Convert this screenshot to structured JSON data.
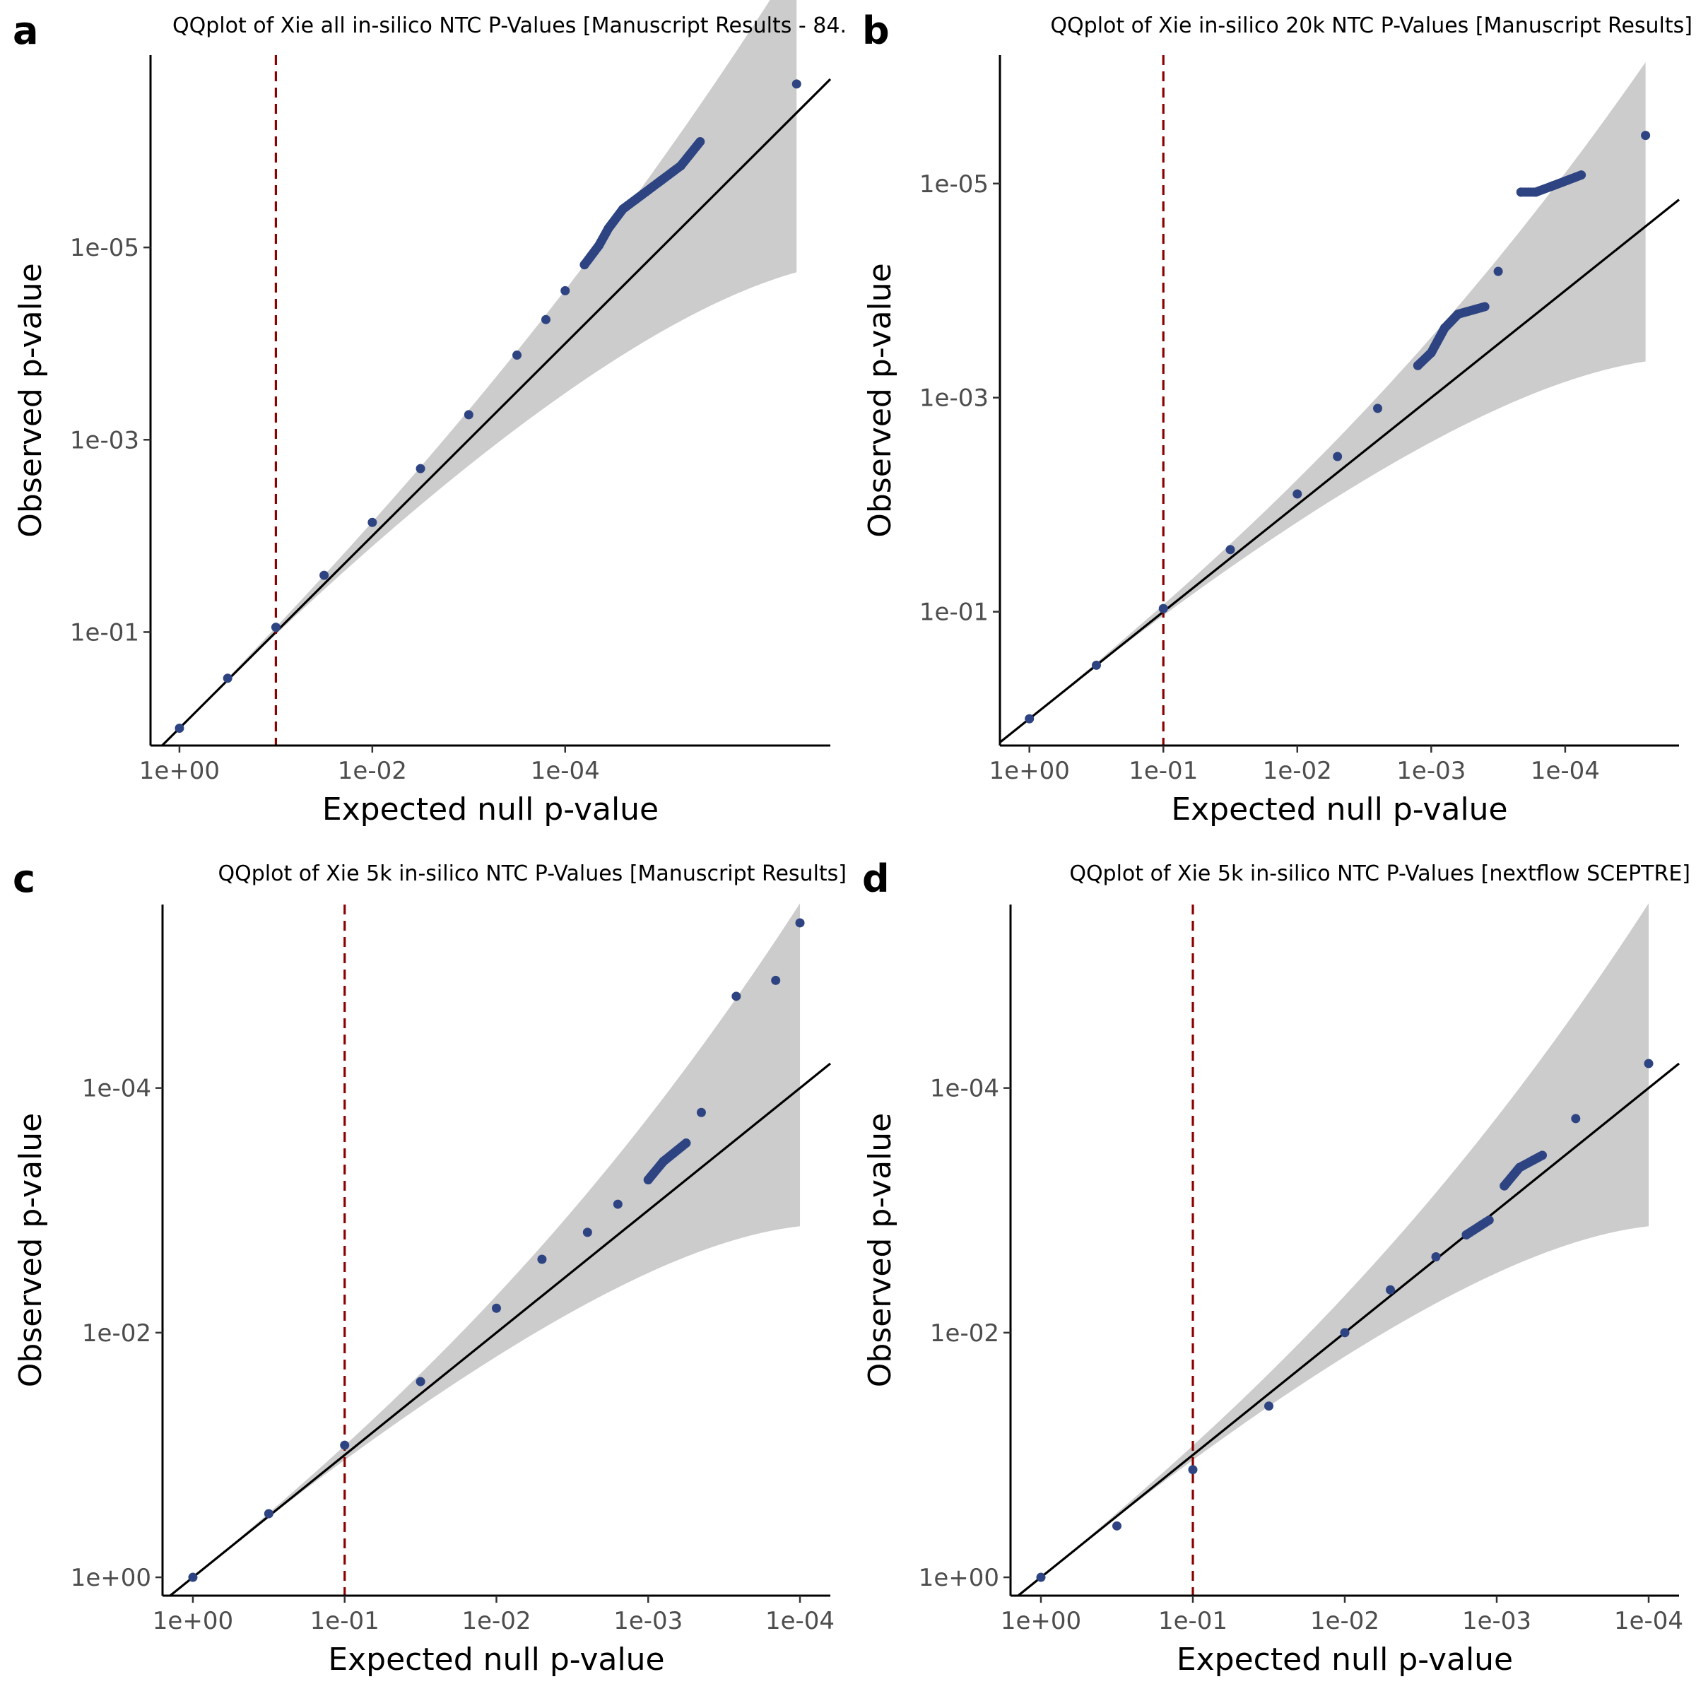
{
  "chart_data": [
    {
      "panel": "a",
      "type": "scatter",
      "title": "QQplot of Xie all in-silico NTC P-Values [Manuscript Results - 84.",
      "xlabel": "Expected null p-value",
      "ylabel": "Observed p-value",
      "x_scale": "reverse-log10",
      "y_scale": "reverse-log10",
      "xlim_neglog10": [
        -0.3,
        6.75
      ],
      "ylim_neglog10": [
        -0.18,
        7.0
      ],
      "x_ticks": [
        "1e+00",
        "1e-02",
        "1e-04"
      ],
      "y_ticks": [
        "1e-01",
        "1e-03",
        "1e-05"
      ],
      "threshold_line_p": 0.1,
      "diagonal": "y = x",
      "points_neglog10": [
        [
          0.0,
          0.0
        ],
        [
          0.5,
          0.52
        ],
        [
          1.0,
          1.05
        ],
        [
          1.5,
          1.59
        ],
        [
          2.0,
          2.14
        ],
        [
          2.5,
          2.7
        ],
        [
          3.0,
          3.26
        ],
        [
          3.5,
          3.88
        ],
        [
          3.8,
          4.25
        ],
        [
          4.0,
          4.55
        ],
        [
          4.2,
          4.82
        ],
        [
          4.35,
          5.02
        ],
        [
          4.45,
          5.2
        ],
        [
          4.6,
          5.4
        ],
        [
          4.8,
          5.55
        ],
        [
          5.0,
          5.7
        ],
        [
          5.2,
          5.85
        ],
        [
          5.4,
          6.1
        ],
        [
          6.4,
          6.7
        ]
      ]
    },
    {
      "panel": "b",
      "type": "scatter",
      "title": "QQplot of Xie in-silico 20k NTC P-Values [Manuscript Results]",
      "xlabel": "Expected null p-value",
      "ylabel": "Observed p-value",
      "x_scale": "reverse-log10",
      "y_scale": "reverse-log10",
      "xlim_neglog10": [
        -0.22,
        4.85
      ],
      "ylim_neglog10": [
        -0.25,
        6.2
      ],
      "x_ticks": [
        "1e+00",
        "1e-01",
        "1e-02",
        "1e-03",
        "1e-04"
      ],
      "y_ticks": [
        "1e-01",
        "1e-03",
        "1e-05"
      ],
      "threshold_line_p": 0.1,
      "diagonal": "y = x",
      "points_neglog10": [
        [
          0.0,
          0.0
        ],
        [
          0.5,
          0.5
        ],
        [
          1.0,
          1.03
        ],
        [
          1.5,
          1.58
        ],
        [
          2.0,
          2.1
        ],
        [
          2.3,
          2.45
        ],
        [
          2.6,
          2.9
        ],
        [
          2.9,
          3.3
        ],
        [
          3.0,
          3.42
        ],
        [
          3.1,
          3.65
        ],
        [
          3.2,
          3.78
        ],
        [
          3.4,
          3.85
        ],
        [
          3.5,
          4.18
        ],
        [
          3.67,
          4.92
        ],
        [
          3.78,
          4.92
        ],
        [
          3.91,
          4.98
        ],
        [
          4.12,
          5.08
        ],
        [
          4.6,
          5.45
        ]
      ]
    },
    {
      "panel": "c",
      "type": "scatter",
      "title": "QQplot of Xie 5k in-silico NTC P-Values [Manuscript Results]",
      "xlabel": "Expected null p-value",
      "ylabel": "Observed p-value",
      "x_scale": "reverse-log10",
      "y_scale": "reverse-log10",
      "xlim_neglog10": [
        -0.2,
        4.2
      ],
      "ylim_neglog10": [
        -0.15,
        5.5
      ],
      "x_ticks": [
        "1e+00",
        "1e-01",
        "1e-02",
        "1e-03",
        "1e-04"
      ],
      "y_ticks": [
        "1e+00",
        "1e-02",
        "1e-04"
      ],
      "threshold_line_p": 0.1,
      "diagonal": "y = x",
      "points_neglog10": [
        [
          0.0,
          0.0
        ],
        [
          0.5,
          0.52
        ],
        [
          1.0,
          1.08
        ],
        [
          1.5,
          1.6
        ],
        [
          2.0,
          2.2
        ],
        [
          2.3,
          2.6
        ],
        [
          2.6,
          2.82
        ],
        [
          2.8,
          3.05
        ],
        [
          3.0,
          3.25
        ],
        [
          3.1,
          3.4
        ],
        [
          3.25,
          3.55
        ],
        [
          3.35,
          3.8
        ],
        [
          3.58,
          4.75
        ],
        [
          3.84,
          4.88
        ],
        [
          4.0,
          5.35
        ]
      ]
    },
    {
      "panel": "d",
      "type": "scatter",
      "title": "QQplot of Xie 5k in-silico NTC P-Values [nextflow SCEPTRE]",
      "xlabel": "Expected null p-value",
      "ylabel": "Observed p-value",
      "x_scale": "reverse-log10",
      "y_scale": "reverse-log10",
      "xlim_neglog10": [
        -0.2,
        4.2
      ],
      "ylim_neglog10": [
        -0.15,
        5.5
      ],
      "x_ticks": [
        "1e+00",
        "1e-01",
        "1e-02",
        "1e-03",
        "1e-04"
      ],
      "y_ticks": [
        "1e+00",
        "1e-02",
        "1e-04"
      ],
      "threshold_line_p": 0.1,
      "diagonal": "y = x",
      "points_neglog10": [
        [
          0.0,
          0.0
        ],
        [
          0.5,
          0.42
        ],
        [
          1.0,
          0.88
        ],
        [
          1.5,
          1.4
        ],
        [
          2.0,
          2.0
        ],
        [
          2.3,
          2.35
        ],
        [
          2.6,
          2.62
        ],
        [
          2.8,
          2.8
        ],
        [
          2.95,
          2.92
        ],
        [
          3.05,
          3.2
        ],
        [
          3.15,
          3.35
        ],
        [
          3.3,
          3.45
        ],
        [
          3.52,
          3.75
        ],
        [
          4.0,
          4.2
        ]
      ]
    }
  ]
}
